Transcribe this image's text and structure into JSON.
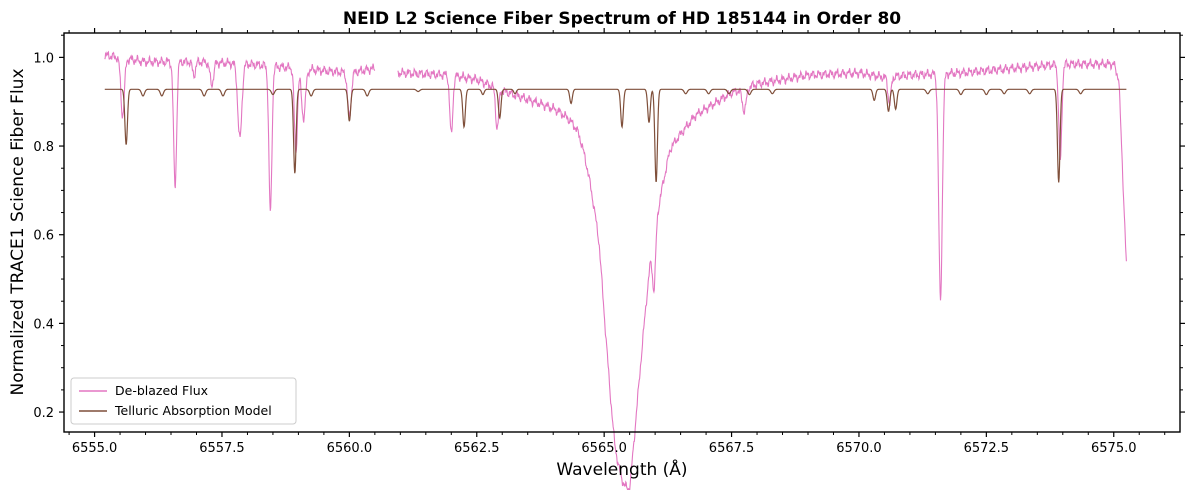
{
  "chart_data": {
    "type": "line",
    "title": "NEID L2 Science Fiber Spectrum of HD 185144 in Order 80",
    "xlabel": "Wavelength (Å)",
    "ylabel": "Normalized TRACE1 Science Fiber Flux",
    "xlim": [
      6554.4,
      6576.3
    ],
    "ylim": [
      0.155,
      1.055
    ],
    "x_ticks": [
      6555.0,
      6557.5,
      6560.0,
      6562.5,
      6565.0,
      6567.5,
      6570.0,
      6572.5,
      6575.0
    ],
    "x_tick_labels": [
      "6555.0",
      "6557.5",
      "6560.0",
      "6562.5",
      "6565.0",
      "6567.5",
      "6570.0",
      "6572.5",
      "6575.0"
    ],
    "y_ticks": [
      0.2,
      0.4,
      0.6,
      0.8,
      1.0
    ],
    "y_tick_labels": [
      "0.2",
      "0.4",
      "0.6",
      "0.8",
      "1.0"
    ],
    "grid": false,
    "legend_position": "lower-left",
    "series": [
      {
        "name": "De-blazed Flux",
        "color": "#e377c2",
        "x_range": [
          6555.2,
          6575.25
        ],
        "gap": [
          6560.5,
          6560.95
        ],
        "continuum_knots": [
          [
            6555.2,
            1.005
          ],
          [
            6556.0,
            0.99
          ],
          [
            6557.0,
            0.99
          ],
          [
            6558.0,
            0.985
          ],
          [
            6559.0,
            0.975
          ],
          [
            6560.0,
            0.965
          ],
          [
            6560.5,
            0.975
          ],
          [
            6561.0,
            0.965
          ],
          [
            6562.0,
            0.96
          ],
          [
            6562.5,
            0.95
          ],
          [
            6563.0,
            0.925
          ],
          [
            6563.5,
            0.905
          ],
          [
            6564.0,
            0.885
          ],
          [
            6564.5,
            0.855
          ],
          [
            6564.9,
            0.78
          ],
          [
            6565.2,
            0.5
          ],
          [
            6565.5,
            0.35
          ],
          [
            6565.9,
            0.62
          ],
          [
            6566.3,
            0.8
          ],
          [
            6566.8,
            0.87
          ],
          [
            6567.5,
            0.92
          ],
          [
            6568.0,
            0.94
          ],
          [
            6568.5,
            0.95
          ],
          [
            6569.0,
            0.96
          ],
          [
            6570.0,
            0.965
          ],
          [
            6570.5,
            0.955
          ],
          [
            6571.0,
            0.96
          ],
          [
            6572.0,
            0.965
          ],
          [
            6573.0,
            0.975
          ],
          [
            6574.0,
            0.985
          ],
          [
            6575.0,
            0.985
          ],
          [
            6575.25,
            0.9
          ]
        ],
        "absorption_lines": [
          {
            "center": 6555.55,
            "depth": 0.13,
            "width": 0.035
          },
          {
            "center": 6556.58,
            "depth": 0.28,
            "width": 0.03
          },
          {
            "center": 6556.95,
            "depth": 0.03,
            "width": 0.03
          },
          {
            "center": 6557.3,
            "depth": 0.05,
            "width": 0.035
          },
          {
            "center": 6557.85,
            "depth": 0.17,
            "width": 0.04
          },
          {
            "center": 6558.45,
            "depth": 0.33,
            "width": 0.03
          },
          {
            "center": 6558.95,
            "depth": 0.19,
            "width": 0.03
          },
          {
            "center": 6559.1,
            "depth": 0.11,
            "width": 0.04
          },
          {
            "center": 6560.0,
            "depth": 0.1,
            "width": 0.035
          },
          {
            "center": 6562.0,
            "depth": 0.135,
            "width": 0.03
          },
          {
            "center": 6562.9,
            "depth": 0.09,
            "width": 0.03
          },
          {
            "center": 6565.3,
            "depth": 0.38,
            "width": 0.35
          },
          {
            "center": 6565.98,
            "depth": 0.12,
            "width": 0.03
          },
          {
            "center": 6567.75,
            "depth": 0.05,
            "width": 0.04
          },
          {
            "center": 6570.6,
            "depth": 0.06,
            "width": 0.03
          },
          {
            "center": 6571.6,
            "depth": 0.51,
            "width": 0.035
          },
          {
            "center": 6573.95,
            "depth": 0.22,
            "width": 0.03
          }
        ]
      },
      {
        "name": "Telluric Absorption Model",
        "color": "#7f4f3a",
        "x_range": [
          6555.2,
          6575.25
        ],
        "baseline": 0.928,
        "absorption_lines": [
          {
            "center": 6555.62,
            "depth": 0.125,
            "width": 0.025
          },
          {
            "center": 6555.95,
            "depth": 0.015,
            "width": 0.03
          },
          {
            "center": 6556.32,
            "depth": 0.015,
            "width": 0.03
          },
          {
            "center": 6557.15,
            "depth": 0.015,
            "width": 0.03
          },
          {
            "center": 6557.52,
            "depth": 0.015,
            "width": 0.03
          },
          {
            "center": 6558.5,
            "depth": 0.012,
            "width": 0.03
          },
          {
            "center": 6558.93,
            "depth": 0.19,
            "width": 0.025
          },
          {
            "center": 6559.25,
            "depth": 0.015,
            "width": 0.03
          },
          {
            "center": 6560.0,
            "depth": 0.072,
            "width": 0.025
          },
          {
            "center": 6560.35,
            "depth": 0.015,
            "width": 0.03
          },
          {
            "center": 6561.35,
            "depth": 0.005,
            "width": 0.03
          },
          {
            "center": 6562.25,
            "depth": 0.085,
            "width": 0.025
          },
          {
            "center": 6562.62,
            "depth": 0.012,
            "width": 0.025
          },
          {
            "center": 6562.95,
            "depth": 0.065,
            "width": 0.025
          },
          {
            "center": 6563.25,
            "depth": 0.01,
            "width": 0.025
          },
          {
            "center": 6564.35,
            "depth": 0.032,
            "width": 0.025
          },
          {
            "center": 6565.35,
            "depth": 0.085,
            "width": 0.025
          },
          {
            "center": 6565.88,
            "depth": 0.075,
            "width": 0.025
          },
          {
            "center": 6566.02,
            "depth": 0.21,
            "width": 0.025
          },
          {
            "center": 6566.6,
            "depth": 0.01,
            "width": 0.03
          },
          {
            "center": 6567.05,
            "depth": 0.01,
            "width": 0.03
          },
          {
            "center": 6567.45,
            "depth": 0.01,
            "width": 0.03
          },
          {
            "center": 6567.85,
            "depth": 0.012,
            "width": 0.03
          },
          {
            "center": 6568.3,
            "depth": 0.01,
            "width": 0.03
          },
          {
            "center": 6570.3,
            "depth": 0.025,
            "width": 0.025
          },
          {
            "center": 6570.58,
            "depth": 0.05,
            "width": 0.025
          },
          {
            "center": 6570.72,
            "depth": 0.045,
            "width": 0.025
          },
          {
            "center": 6571.35,
            "depth": 0.01,
            "width": 0.03
          },
          {
            "center": 6572.0,
            "depth": 0.012,
            "width": 0.03
          },
          {
            "center": 6572.5,
            "depth": 0.012,
            "width": 0.03
          },
          {
            "center": 6572.85,
            "depth": 0.01,
            "width": 0.03
          },
          {
            "center": 6573.35,
            "depth": 0.01,
            "width": 0.03
          },
          {
            "center": 6573.92,
            "depth": 0.21,
            "width": 0.025
          },
          {
            "center": 6574.35,
            "depth": 0.01,
            "width": 0.03
          }
        ]
      }
    ]
  }
}
